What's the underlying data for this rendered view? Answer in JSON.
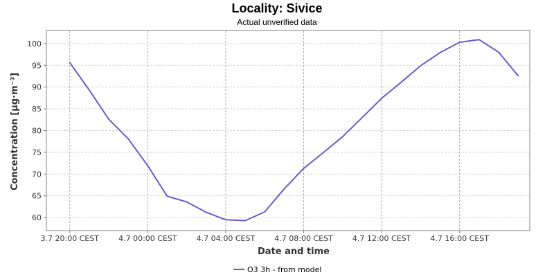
{
  "chart_data": {
    "type": "line",
    "title": "Locality: Sivice",
    "subtitle": "Actual unverified data",
    "xlabel": "Date and time",
    "ylabel": "Concentration [µg·m⁻³]",
    "x_tick_labels": [
      "3.7 20:00 CEST",
      "4.7 00:00 CEST",
      "4.7 04:00 CEST",
      "4.7 08:00 CEST",
      "4.7 12:00 CEST",
      "4.7 16:00 CEST"
    ],
    "x_tick_hours": [
      0,
      4,
      8,
      12,
      16,
      20
    ],
    "xlim_hours": [
      -1.2,
      23.6
    ],
    "y_ticks": [
      60,
      65,
      70,
      75,
      80,
      85,
      90,
      95,
      100
    ],
    "ylim": [
      57,
      103
    ],
    "grid": true,
    "legend_position": "bottom-center",
    "series": [
      {
        "name": "O3 3h - from model",
        "color": "#6a5acd",
        "x_hours": [
          0,
          1,
          2,
          3,
          4,
          5,
          6,
          7,
          8,
          9,
          10,
          11,
          12,
          13,
          14,
          15,
          16,
          17,
          18,
          19,
          20,
          21,
          22,
          23
        ],
        "values": [
          95.6,
          89.3,
          82.6,
          78.1,
          71.9,
          64.9,
          63.6,
          61.2,
          59.5,
          59.3,
          61.3,
          66.6,
          71.3,
          74.9,
          78.6,
          83.0,
          87.4,
          91.1,
          94.9,
          97.9,
          100.3,
          100.9,
          98.0,
          92.6
        ]
      }
    ]
  }
}
